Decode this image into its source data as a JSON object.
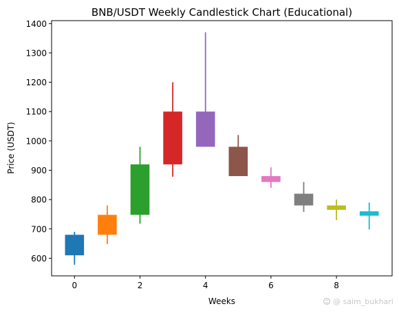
{
  "chart_data": {
    "type": "candlestick",
    "title": "BNB/USDT Weekly Candlestick Chart (Educational)",
    "xlabel": "Weeks",
    "ylabel": "Price (USDT)",
    "xlim": [
      -0.7,
      9.7
    ],
    "ylim": [
      540,
      1410
    ],
    "x_ticks": [
      0,
      2,
      4,
      6,
      8
    ],
    "y_ticks": [
      600,
      700,
      800,
      900,
      1000,
      1100,
      1200,
      1300,
      1400
    ],
    "grid": false,
    "legend": "none",
    "candles": [
      {
        "week": 0,
        "open": 680,
        "close": 610,
        "high": 690,
        "low": 578,
        "color": "#1f77b4"
      },
      {
        "week": 1,
        "open": 680,
        "close": 748,
        "high": 780,
        "low": 648,
        "color": "#ff7f0e"
      },
      {
        "week": 2,
        "open": 748,
        "close": 920,
        "high": 980,
        "low": 718,
        "color": "#2ca02c"
      },
      {
        "week": 3,
        "open": 920,
        "close": 1100,
        "high": 1200,
        "low": 878,
        "color": "#d62728"
      },
      {
        "week": 4,
        "open": 1100,
        "close": 980,
        "high": 1370,
        "low": 980,
        "color": "#9467bd"
      },
      {
        "week": 5,
        "open": 980,
        "close": 880,
        "high": 1020,
        "low": 880,
        "color": "#8c564b"
      },
      {
        "week": 6,
        "open": 880,
        "close": 860,
        "high": 910,
        "low": 840,
        "color": "#e377c2"
      },
      {
        "week": 7,
        "open": 820,
        "close": 780,
        "high": 860,
        "low": 758,
        "color": "#7f7f7f"
      },
      {
        "week": 8,
        "open": 780,
        "close": 765,
        "high": 800,
        "low": 730,
        "color": "#bcbd22"
      },
      {
        "week": 9,
        "open": 760,
        "close": 745,
        "high": 790,
        "low": 698,
        "color": "#17becf"
      }
    ]
  },
  "watermark": {
    "text": "@ saim_bukhari",
    "icon": "thread-at-icon"
  }
}
